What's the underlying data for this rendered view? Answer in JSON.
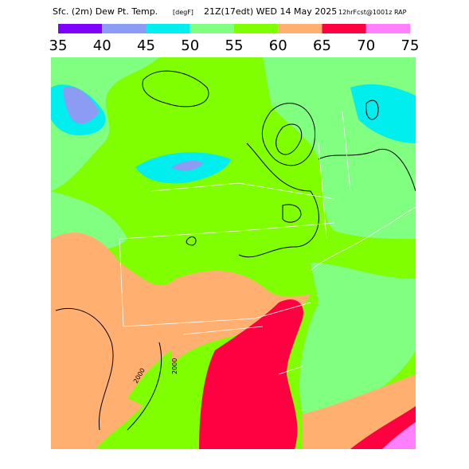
{
  "header": {
    "title": "Sfc. (2m) Dew Pt. Temp.",
    "units": "[degF]",
    "valid": "21Z(17edt) WED 14 May 2025",
    "forecast": "12hrFcst@1001z RAP"
  },
  "colorbar": {
    "ticks": [
      35,
      40,
      45,
      50,
      55,
      60,
      65,
      70,
      75
    ],
    "colors": [
      "#7f00ff",
      "#8c9cf4",
      "#00eeee",
      "#80ff80",
      "#80ff00",
      "#ffb070",
      "#ff0040",
      "#ff80ff"
    ]
  },
  "map": {
    "contour_labels": [
      "2000",
      "2000"
    ]
  }
}
